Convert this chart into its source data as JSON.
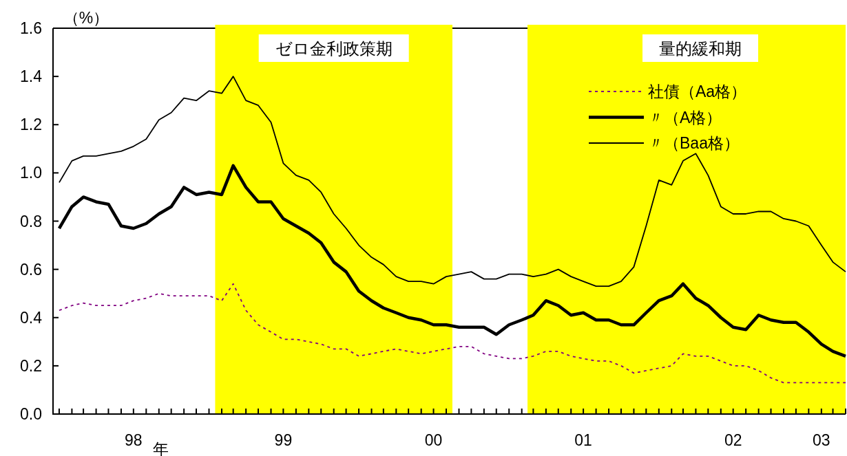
{
  "chart_data": {
    "type": "line",
    "ylabel": "（%）",
    "xlabel": "年",
    "x": [
      "1998-01",
      "1998-02",
      "1998-03",
      "1998-04",
      "1998-05",
      "1998-06",
      "1998-07",
      "1998-08",
      "1998-09",
      "1998-10",
      "1998-11",
      "1998-12",
      "1999-01",
      "1999-02",
      "1999-03",
      "1999-04",
      "1999-05",
      "1999-06",
      "1999-07",
      "1999-08",
      "1999-09",
      "1999-10",
      "1999-11",
      "1999-12",
      "2000-01",
      "2000-02",
      "2000-03",
      "2000-04",
      "2000-05",
      "2000-06",
      "2000-07",
      "2000-08",
      "2000-09",
      "2000-10",
      "2000-11",
      "2000-12",
      "2001-01",
      "2001-02",
      "2001-03",
      "2001-04",
      "2001-05",
      "2001-06",
      "2001-07",
      "2001-08",
      "2001-09",
      "2001-10",
      "2001-11",
      "2001-12",
      "2002-01",
      "2002-02",
      "2002-03",
      "2002-04",
      "2002-05",
      "2002-06",
      "2002-07",
      "2002-08",
      "2002-09",
      "2002-10",
      "2002-11",
      "2002-12",
      "2003-01",
      "2003-02",
      "2003-03",
      "2003-04"
    ],
    "series": [
      {
        "name": "社債（Aa格）",
        "color": "#800080",
        "line_style": "dotted",
        "values": [
          0.43,
          0.45,
          0.46,
          0.45,
          0.45,
          0.45,
          0.47,
          0.48,
          0.5,
          0.49,
          0.49,
          0.49,
          0.49,
          0.47,
          0.54,
          0.43,
          0.37,
          0.34,
          0.31,
          0.31,
          0.3,
          0.29,
          0.27,
          0.27,
          0.24,
          0.25,
          0.26,
          0.27,
          0.26,
          0.25,
          0.26,
          0.27,
          0.28,
          0.28,
          0.25,
          0.24,
          0.23,
          0.23,
          0.24,
          0.26,
          0.26,
          0.24,
          0.23,
          0.22,
          0.22,
          0.2,
          0.17,
          0.18,
          0.19,
          0.2,
          0.25,
          0.24,
          0.24,
          0.22,
          0.2,
          0.2,
          0.18,
          0.15,
          0.13,
          0.13,
          0.13,
          0.13,
          0.13,
          0.13
        ]
      },
      {
        "name": "〃（A格）",
        "color": "#000000",
        "line_style": "solid",
        "values": [
          0.77,
          0.86,
          0.9,
          0.88,
          0.87,
          0.78,
          0.77,
          0.79,
          0.83,
          0.86,
          0.94,
          0.91,
          0.92,
          0.91,
          1.03,
          0.94,
          0.88,
          0.88,
          0.81,
          0.78,
          0.75,
          0.71,
          0.63,
          0.59,
          0.51,
          0.47,
          0.44,
          0.42,
          0.4,
          0.39,
          0.37,
          0.37,
          0.36,
          0.36,
          0.36,
          0.33,
          0.37,
          0.39,
          0.41,
          0.47,
          0.45,
          0.41,
          0.42,
          0.39,
          0.39,
          0.37,
          0.37,
          0.42,
          0.47,
          0.49,
          0.54,
          0.48,
          0.45,
          0.4,
          0.36,
          0.35,
          0.41,
          0.39,
          0.38,
          0.38,
          0.34,
          0.29,
          0.26,
          0.24
        ]
      },
      {
        "name": "〃（Baa格）",
        "color": "#000000",
        "line_style": "solid",
        "values": [
          0.96,
          1.05,
          1.07,
          1.07,
          1.08,
          1.09,
          1.11,
          1.14,
          1.22,
          1.25,
          1.31,
          1.3,
          1.34,
          1.33,
          1.4,
          1.3,
          1.28,
          1.21,
          1.04,
          0.99,
          0.97,
          0.92,
          0.83,
          0.77,
          0.7,
          0.65,
          0.62,
          0.57,
          0.55,
          0.55,
          0.54,
          0.57,
          0.58,
          0.59,
          0.56,
          0.56,
          0.58,
          0.58,
          0.57,
          0.58,
          0.6,
          0.57,
          0.55,
          0.53,
          0.53,
          0.55,
          0.61,
          0.78,
          0.97,
          0.95,
          1.05,
          1.08,
          0.99,
          0.86,
          0.83,
          0.83,
          0.84,
          0.84,
          0.81,
          0.8,
          0.78,
          0.7,
          0.63,
          0.59
        ]
      }
    ],
    "xlim": [
      "1997-12-17",
      "2003-04"
    ],
    "xticks": [
      {
        "value": "1998-01",
        "label": null
      },
      {
        "value": "1998-02",
        "label": null
      },
      {
        "value": "1998-03",
        "label": null
      },
      {
        "value": "1998-04",
        "label": null
      },
      {
        "value": "1998-05",
        "label": null
      },
      {
        "value": "1998-06",
        "label": null
      },
      {
        "value": "1998-07",
        "label": "98"
      },
      {
        "value": "1998-08",
        "label": null
      },
      {
        "value": "1998-09",
        "label": null
      },
      {
        "value": "1998-10",
        "label": null
      },
      {
        "value": "1998-11",
        "label": null
      },
      {
        "value": "1998-12",
        "label": null
      },
      {
        "value": "1999-01",
        "label": null
      },
      {
        "value": "1999-02",
        "label": null
      },
      {
        "value": "1999-03",
        "label": null
      },
      {
        "value": "1999-04",
        "label": null
      },
      {
        "value": "1999-05",
        "label": null
      },
      {
        "value": "1999-06",
        "label": null
      },
      {
        "value": "1999-07",
        "label": "99"
      },
      {
        "value": "1999-08",
        "label": null
      },
      {
        "value": "1999-09",
        "label": null
      },
      {
        "value": "1999-10",
        "label": null
      },
      {
        "value": "1999-11",
        "label": null
      },
      {
        "value": "1999-12",
        "label": null
      },
      {
        "value": "2000-01",
        "label": null
      },
      {
        "value": "2000-02",
        "label": null
      },
      {
        "value": "2000-03",
        "label": null
      },
      {
        "value": "2000-04",
        "label": null
      },
      {
        "value": "2000-05",
        "label": null
      },
      {
        "value": "2000-06",
        "label": null
      },
      {
        "value": "2000-07",
        "label": "00"
      },
      {
        "value": "2000-08",
        "label": null
      },
      {
        "value": "2000-09",
        "label": null
      },
      {
        "value": "2000-10",
        "label": null
      },
      {
        "value": "2000-11",
        "label": null
      },
      {
        "value": "2000-12",
        "label": null
      },
      {
        "value": "2001-01",
        "label": null
      },
      {
        "value": "2001-02",
        "label": null
      },
      {
        "value": "2001-03",
        "label": null
      },
      {
        "value": "2001-04",
        "label": null
      },
      {
        "value": "2001-05",
        "label": null
      },
      {
        "value": "2001-06",
        "label": null
      },
      {
        "value": "2001-07",
        "label": "01"
      },
      {
        "value": "2001-08",
        "label": null
      },
      {
        "value": "2001-09",
        "label": null
      },
      {
        "value": "2001-10",
        "label": null
      },
      {
        "value": "2001-11",
        "label": null
      },
      {
        "value": "2001-12",
        "label": null
      },
      {
        "value": "2002-01",
        "label": null
      },
      {
        "value": "2002-02",
        "label": null
      },
      {
        "value": "2002-03",
        "label": null
      },
      {
        "value": "2002-04",
        "label": null
      },
      {
        "value": "2002-05",
        "label": null
      },
      {
        "value": "2002-06",
        "label": null
      },
      {
        "value": "2002-07",
        "label": "02"
      },
      {
        "value": "2002-08",
        "label": null
      },
      {
        "value": "2002-09",
        "label": null
      },
      {
        "value": "2002-10",
        "label": null
      },
      {
        "value": "2002-11",
        "label": null
      },
      {
        "value": "2002-12",
        "label": null
      },
      {
        "value": "2003-01",
        "label": null
      },
      {
        "value": "2003-02",
        "label": "03"
      },
      {
        "value": "2003-03",
        "label": null
      },
      {
        "value": "2003-04",
        "label": null
      }
    ],
    "ylim": [
      0,
      1.6
    ],
    "yticks": [
      {
        "value": 0,
        "label": "0.0"
      },
      {
        "value": 0.2,
        "label": "0.2"
      },
      {
        "value": 0.4,
        "label": "0.4"
      },
      {
        "value": 0.6,
        "label": "0.6"
      },
      {
        "value": 0.8,
        "label": "0.8"
      },
      {
        "value": 1.0,
        "label": "1.0"
      },
      {
        "value": 1.2,
        "label": "1.2"
      },
      {
        "value": 1.4,
        "label": "1.4"
      },
      {
        "value": 1.6,
        "label": "1.6"
      }
    ],
    "bands": [
      {
        "axis": "x",
        "from": "1999-01-16",
        "to": "2000-08-16",
        "label": "ゼロ金利政策期",
        "color": "#ffff00"
      },
      {
        "axis": "x",
        "from": "2001-02-15",
        "to": "2003-04",
        "label": "量的緩和期",
        "color": "#ffff00"
      }
    ],
    "legend": "top right",
    "grid": false,
    "marker": "none"
  }
}
